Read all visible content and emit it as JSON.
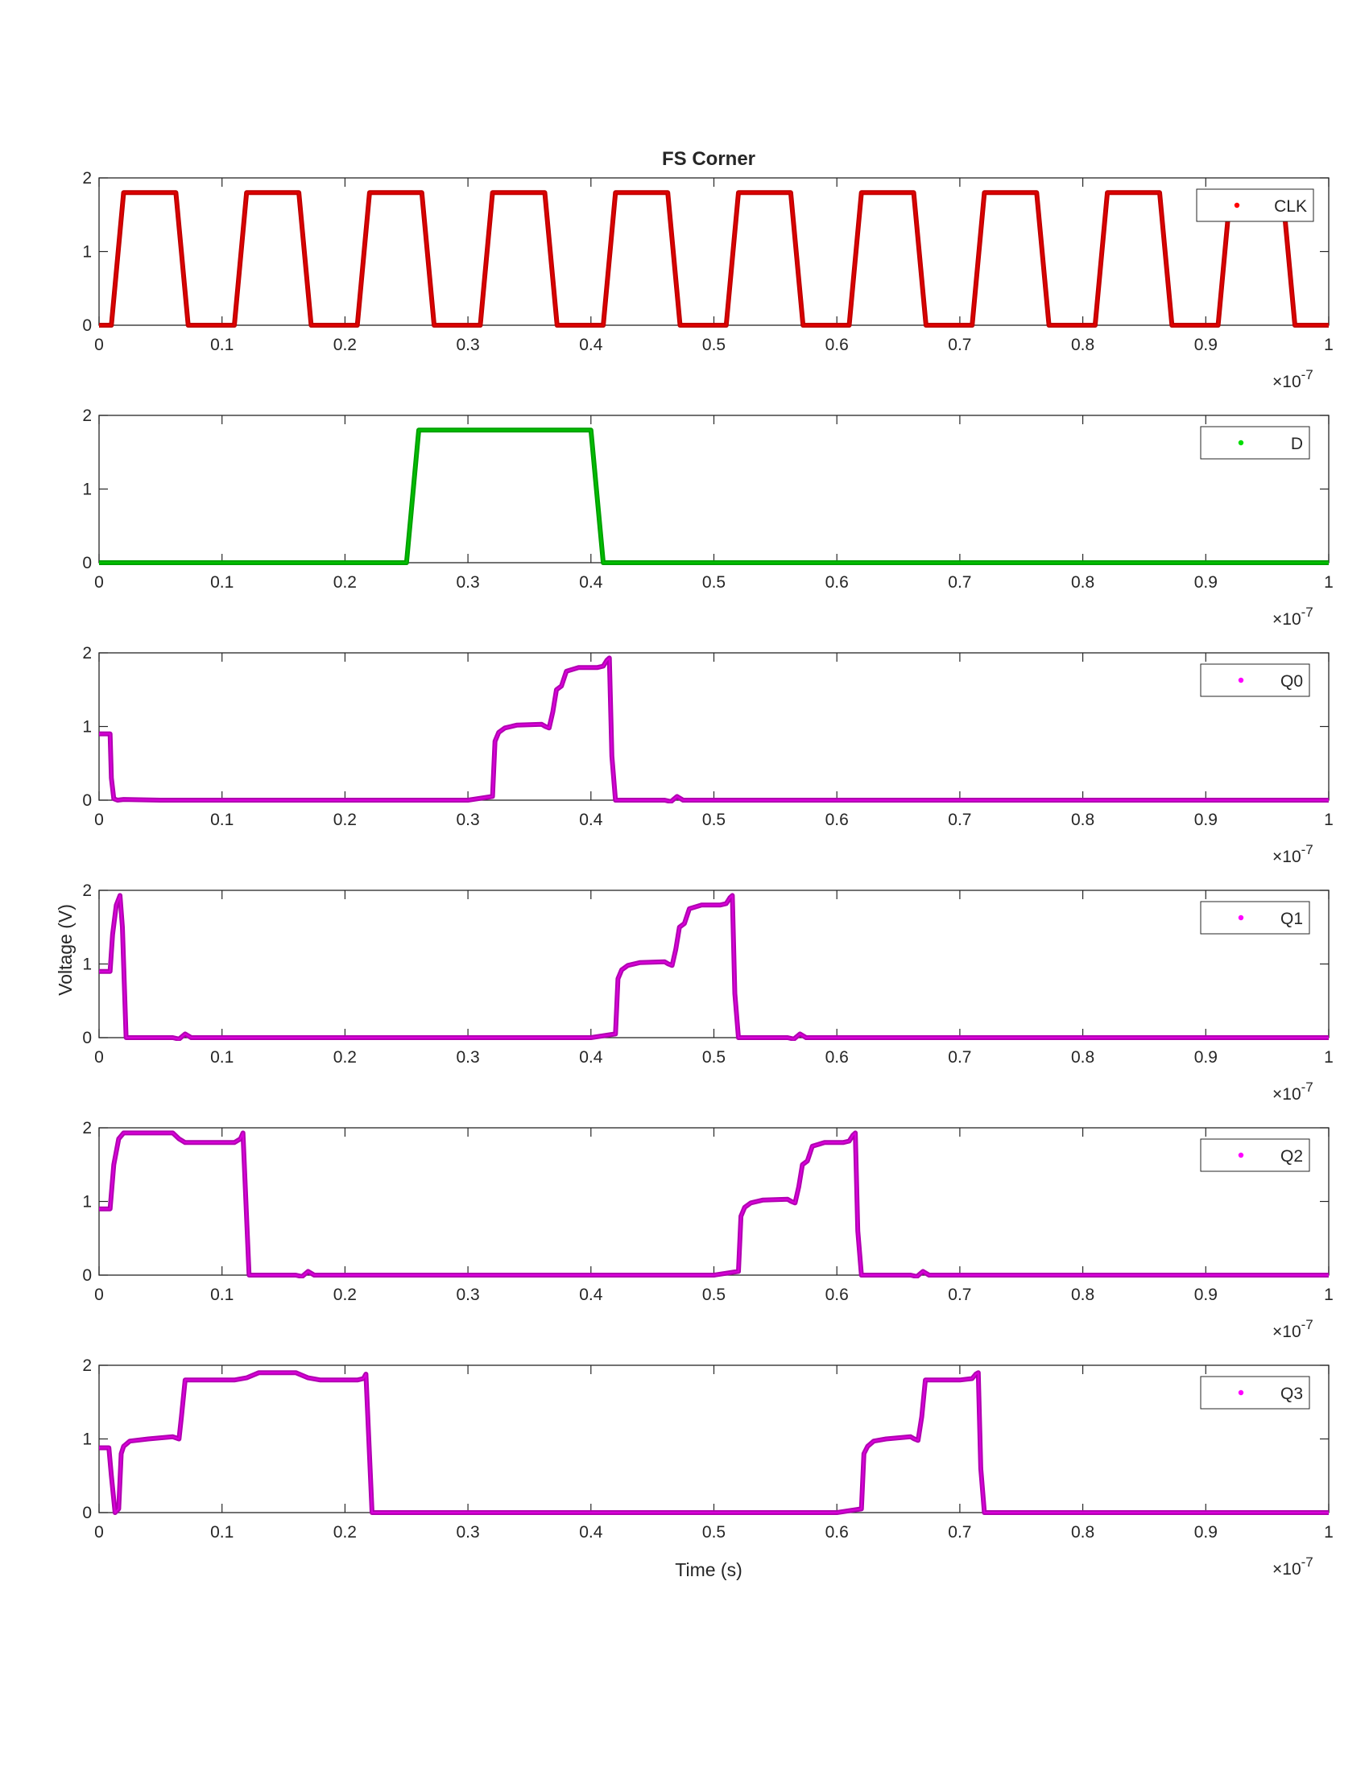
{
  "chart_data": {
    "type": "line",
    "title": "FS Corner",
    "xlabel": "Time (s)",
    "ylabel": "Voltage (V)",
    "x_exponent_label": "×10",
    "x_exponent_power": "-7",
    "grid": false,
    "legend_position": "top-right",
    "xlim": [
      0,
      1
    ],
    "ylim": [
      0,
      2
    ],
    "x_ticks": [
      0,
      0.1,
      0.2,
      0.3,
      0.4,
      0.5,
      0.6,
      0.7,
      0.8,
      0.9,
      1
    ],
    "x_tick_labels": [
      "0",
      "0.1",
      "0.2",
      "0.3",
      "0.4",
      "0.5",
      "0.6",
      "0.7",
      "0.8",
      "0.9",
      "1"
    ],
    "y_ticks": [
      0,
      1,
      2
    ],
    "y_tick_labels": [
      "0",
      "1",
      "2"
    ],
    "axis_color": "#262626",
    "panels": [
      {
        "name": "CLK",
        "color": "#c00000",
        "marker_color": "#ff0000",
        "x": [
          0,
          0.01,
          0.02,
          0.0625,
          0.0725,
          0.11,
          0.12,
          0.1625,
          0.1725,
          0.21,
          0.22,
          0.2625,
          0.2725,
          0.31,
          0.32,
          0.3625,
          0.3725,
          0.41,
          0.42,
          0.4625,
          0.4725,
          0.51,
          0.52,
          0.5625,
          0.5725,
          0.61,
          0.62,
          0.6625,
          0.6725,
          0.71,
          0.72,
          0.7625,
          0.7725,
          0.81,
          0.82,
          0.8625,
          0.8725,
          0.91,
          0.92,
          0.9625,
          0.9725,
          1.0
        ],
        "y": [
          0,
          0,
          1.8,
          1.8,
          0,
          0,
          1.8,
          1.8,
          0,
          0,
          1.8,
          1.8,
          0,
          0,
          1.8,
          1.8,
          0,
          0,
          1.8,
          1.8,
          0,
          0,
          1.8,
          1.8,
          0,
          0,
          1.8,
          1.8,
          0,
          0,
          1.8,
          1.8,
          0,
          0,
          1.8,
          1.8,
          0,
          0,
          1.8,
          1.8,
          0,
          0
        ]
      },
      {
        "name": "D",
        "color": "#00a000",
        "marker_color": "#00dd00",
        "x": [
          0,
          0.25,
          0.26,
          0.4,
          0.41,
          1.0
        ],
        "y": [
          0,
          0,
          1.8,
          1.8,
          0,
          0
        ]
      },
      {
        "name": "Q0",
        "color": "#b000b0",
        "marker_color": "#ff00ff",
        "x": [
          0,
          0.009,
          0.01,
          0.012,
          0.015,
          0.02,
          0.05,
          0.1,
          0.2,
          0.3,
          0.32,
          0.322,
          0.325,
          0.33,
          0.34,
          0.36,
          0.363,
          0.366,
          0.369,
          0.372,
          0.376,
          0.38,
          0.39,
          0.405,
          0.41,
          0.413,
          0.415,
          0.417,
          0.42,
          0.43,
          0.46,
          0.465,
          0.47,
          0.475,
          0.5,
          0.6,
          0.7,
          0.8,
          0.9,
          1.0
        ],
        "y": [
          0.9,
          0.9,
          0.3,
          0.02,
          0,
          0.01,
          0,
          0,
          0,
          0,
          0.05,
          0.8,
          0.92,
          0.98,
          1.02,
          1.03,
          1.0,
          0.98,
          1.2,
          1.5,
          1.55,
          1.75,
          1.8,
          1.8,
          1.82,
          1.9,
          1.93,
          0.6,
          0,
          0,
          0,
          -0.02,
          0.05,
          0,
          0,
          0,
          0,
          0,
          0,
          0
        ]
      },
      {
        "name": "Q1",
        "color": "#b000b0",
        "marker_color": "#ff00ff",
        "x": [
          0,
          0.009,
          0.011,
          0.014,
          0.017,
          0.019,
          0.022,
          0.03,
          0.06,
          0.065,
          0.07,
          0.075,
          0.1,
          0.2,
          0.3,
          0.4,
          0.42,
          0.422,
          0.425,
          0.43,
          0.44,
          0.46,
          0.463,
          0.466,
          0.469,
          0.472,
          0.476,
          0.48,
          0.49,
          0.505,
          0.51,
          0.513,
          0.515,
          0.517,
          0.52,
          0.53,
          0.56,
          0.565,
          0.57,
          0.575,
          0.6,
          0.7,
          0.8,
          0.9,
          1.0
        ],
        "y": [
          0.9,
          0.9,
          1.4,
          1.8,
          1.93,
          1.5,
          0,
          0,
          0,
          -0.02,
          0.05,
          0,
          0,
          0,
          0,
          0,
          0.05,
          0.8,
          0.92,
          0.98,
          1.02,
          1.03,
          1.0,
          0.98,
          1.2,
          1.5,
          1.55,
          1.75,
          1.8,
          1.8,
          1.82,
          1.9,
          1.93,
          0.6,
          0,
          0,
          0,
          -0.02,
          0.05,
          0,
          0,
          0,
          0,
          0,
          0
        ]
      },
      {
        "name": "Q2",
        "color": "#b000b0",
        "marker_color": "#ff00ff",
        "x": [
          0,
          0.009,
          0.012,
          0.016,
          0.02,
          0.03,
          0.06,
          0.065,
          0.07,
          0.08,
          0.11,
          0.115,
          0.117,
          0.122,
          0.13,
          0.16,
          0.165,
          0.17,
          0.175,
          0.2,
          0.3,
          0.4,
          0.5,
          0.52,
          0.522,
          0.525,
          0.53,
          0.54,
          0.56,
          0.563,
          0.566,
          0.569,
          0.572,
          0.576,
          0.58,
          0.59,
          0.605,
          0.61,
          0.613,
          0.615,
          0.617,
          0.62,
          0.63,
          0.66,
          0.665,
          0.67,
          0.675,
          0.7,
          0.8,
          0.9,
          1.0
        ],
        "y": [
          0.9,
          0.9,
          1.5,
          1.85,
          1.93,
          1.93,
          1.93,
          1.85,
          1.8,
          1.8,
          1.8,
          1.85,
          1.93,
          0,
          0,
          0,
          -0.02,
          0.05,
          0,
          0,
          0,
          0,
          0,
          0.05,
          0.8,
          0.92,
          0.98,
          1.02,
          1.03,
          1.0,
          0.98,
          1.2,
          1.5,
          1.55,
          1.75,
          1.8,
          1.8,
          1.82,
          1.9,
          1.93,
          0.6,
          0,
          0,
          0,
          -0.02,
          0.05,
          0,
          0,
          0,
          0,
          0
        ]
      },
      {
        "name": "Q3",
        "color": "#b000b0",
        "marker_color": "#ff00ff",
        "x": [
          0,
          0.008,
          0.01,
          0.013,
          0.016,
          0.018,
          0.02,
          0.025,
          0.04,
          0.06,
          0.065,
          0.067,
          0.07,
          0.08,
          0.11,
          0.12,
          0.13,
          0.16,
          0.17,
          0.18,
          0.21,
          0.215,
          0.217,
          0.222,
          0.23,
          0.3,
          0.4,
          0.5,
          0.6,
          0.62,
          0.622,
          0.625,
          0.63,
          0.64,
          0.66,
          0.663,
          0.666,
          0.669,
          0.672,
          0.675,
          0.68,
          0.7,
          0.71,
          0.713,
          0.715,
          0.717,
          0.72,
          0.73,
          0.8,
          0.9,
          1.0
        ],
        "y": [
          0.88,
          0.88,
          0.5,
          0,
          0.05,
          0.8,
          0.9,
          0.97,
          1.0,
          1.03,
          1.0,
          1.3,
          1.8,
          1.8,
          1.8,
          1.83,
          1.9,
          1.9,
          1.83,
          1.8,
          1.8,
          1.82,
          1.88,
          0,
          0,
          0,
          0,
          0,
          0,
          0.05,
          0.8,
          0.9,
          0.97,
          1.0,
          1.03,
          1.0,
          0.98,
          1.3,
          1.8,
          1.8,
          1.8,
          1.8,
          1.82,
          1.88,
          1.9,
          0.6,
          0,
          0,
          0,
          0,
          0
        ]
      }
    ]
  }
}
